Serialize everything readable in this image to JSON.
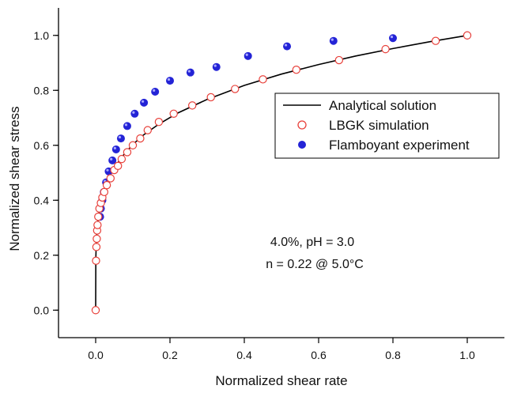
{
  "chart_data": {
    "type": "scatter",
    "title": "",
    "xlabel": "Normalized shear rate",
    "ylabel": "Normalized shear stress",
    "xlim": [
      -0.1,
      1.1
    ],
    "ylim": [
      -0.1,
      1.1
    ],
    "x_ticks": [
      0.0,
      0.2,
      0.4,
      0.6,
      0.8,
      1.0
    ],
    "y_ticks": [
      0.0,
      0.2,
      0.4,
      0.6,
      0.8,
      1.0
    ],
    "x_tick_labels": [
      "0.0",
      "0.2",
      "0.4",
      "0.6",
      "0.8",
      "1.0"
    ],
    "y_tick_labels": [
      "0.0",
      "0.2",
      "0.4",
      "0.6",
      "0.8",
      "1.0"
    ],
    "legend_position": "top-right",
    "series": [
      {
        "name": "Analytical solution",
        "kind": "line",
        "color": "#000000",
        "x": [
          0,
          0.0005,
          0.001,
          0.002,
          0.004,
          0.006,
          0.01,
          0.015,
          0.02,
          0.03,
          0.04,
          0.05,
          0.07,
          0.1,
          0.13,
          0.17,
          0.22,
          0.3,
          0.4,
          0.5,
          0.6,
          0.7,
          0.8,
          0.9,
          1.0
        ],
        "y": [
          0,
          0.188,
          0.219,
          0.254,
          0.296,
          0.323,
          0.363,
          0.397,
          0.423,
          0.463,
          0.493,
          0.517,
          0.557,
          0.603,
          0.639,
          0.677,
          0.717,
          0.767,
          0.818,
          0.859,
          0.894,
          0.925,
          0.952,
          0.977,
          1.0
        ]
      },
      {
        "name": "LBGK simulation",
        "kind": "open-marker",
        "color": "#e8403a",
        "points": [
          [
            0.0,
            0.0
          ],
          [
            0.001,
            0.18
          ],
          [
            0.002,
            0.23
          ],
          [
            0.003,
            0.26
          ],
          [
            0.004,
            0.29
          ],
          [
            0.005,
            0.31
          ],
          [
            0.007,
            0.34
          ],
          [
            0.01,
            0.37
          ],
          [
            0.014,
            0.39
          ],
          [
            0.018,
            0.41
          ],
          [
            0.023,
            0.43
          ],
          [
            0.03,
            0.455
          ],
          [
            0.04,
            0.48
          ],
          [
            0.05,
            0.51
          ],
          [
            0.06,
            0.525
          ],
          [
            0.07,
            0.55
          ],
          [
            0.085,
            0.575
          ],
          [
            0.1,
            0.6
          ],
          [
            0.12,
            0.625
          ],
          [
            0.14,
            0.655
          ],
          [
            0.17,
            0.685
          ],
          [
            0.21,
            0.715
          ],
          [
            0.26,
            0.745
          ],
          [
            0.31,
            0.775
          ],
          [
            0.375,
            0.805
          ],
          [
            0.45,
            0.84
          ],
          [
            0.54,
            0.875
          ],
          [
            0.655,
            0.91
          ],
          [
            0.78,
            0.95
          ],
          [
            0.915,
            0.98
          ],
          [
            1.0,
            1.0
          ]
        ]
      },
      {
        "name": "Flamboyant experiment",
        "kind": "filled-marker",
        "color": "#2323d6",
        "points": [
          [
            0.012,
            0.34
          ],
          [
            0.014,
            0.37
          ],
          [
            0.018,
            0.4
          ],
          [
            0.022,
            0.43
          ],
          [
            0.028,
            0.465
          ],
          [
            0.035,
            0.505
          ],
          [
            0.045,
            0.545
          ],
          [
            0.055,
            0.585
          ],
          [
            0.068,
            0.625
          ],
          [
            0.085,
            0.67
          ],
          [
            0.105,
            0.715
          ],
          [
            0.13,
            0.755
          ],
          [
            0.16,
            0.795
          ],
          [
            0.2,
            0.835
          ],
          [
            0.255,
            0.865
          ],
          [
            0.325,
            0.885
          ],
          [
            0.41,
            0.925
          ],
          [
            0.515,
            0.96
          ],
          [
            0.64,
            0.98
          ],
          [
            0.8,
            0.99
          ],
          [
            1.0,
            1.0
          ]
        ]
      }
    ],
    "annotations": [
      "4.0%, pH = 3.0",
      "n = 0.22 @ 5.0°C"
    ]
  }
}
